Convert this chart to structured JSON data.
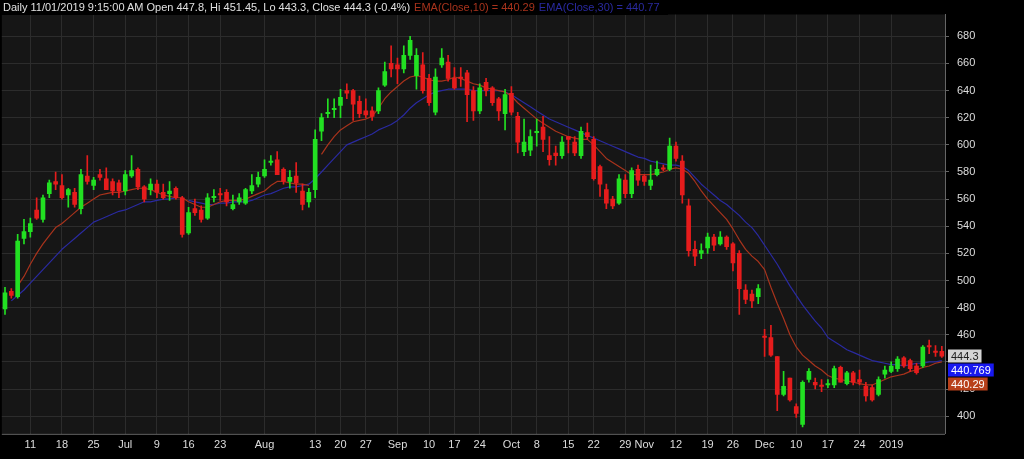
{
  "chart_data": {
    "type": "candlestick",
    "title": "Daily 11/01/2019 9:15:00 AM Open 447.8, Hi 451.45, Lo 443.3, Close 444.3 (-0.4%)",
    "categories": [
      null,
      null,
      null,
      null,
      "11",
      null,
      null,
      null,
      null,
      "18",
      null,
      null,
      null,
      null,
      "25",
      null,
      null,
      null,
      null,
      "Jul",
      null,
      null,
      null,
      null,
      "9",
      null,
      null,
      null,
      null,
      "16",
      null,
      null,
      null,
      null,
      "23",
      null,
      null,
      null,
      null,
      null,
      null,
      "Aug",
      null,
      null,
      null,
      null,
      null,
      null,
      null,
      "13",
      null,
      null,
      null,
      "20",
      null,
      null,
      null,
      "27",
      null,
      null,
      null,
      null,
      "Sep",
      null,
      null,
      null,
      null,
      "10",
      null,
      null,
      null,
      "17",
      null,
      null,
      null,
      "24",
      null,
      null,
      null,
      null,
      "Oct",
      null,
      null,
      null,
      "8",
      null,
      null,
      null,
      null,
      "15",
      null,
      null,
      null,
      "22",
      null,
      null,
      null,
      null,
      "29",
      null,
      null,
      "Nov",
      null,
      null,
      null,
      null,
      "12",
      null,
      null,
      null,
      null,
      "19",
      null,
      null,
      null,
      "26",
      null,
      null,
      null,
      null,
      "Dec",
      null,
      null,
      null,
      null,
      "10",
      null,
      null,
      null,
      null,
      "17",
      null,
      null,
      null,
      null,
      "24",
      null,
      null,
      null,
      null,
      "2019",
      null,
      null,
      null,
      null,
      null,
      null,
      null,
      null
    ],
    "ohlc": [
      [
        479,
        495,
        475,
        491
      ],
      [
        492,
        494,
        487,
        489
      ],
      [
        488,
        534,
        487,
        529
      ],
      [
        531,
        545,
        527,
        536
      ],
      [
        536,
        546,
        532,
        542
      ],
      [
        552,
        561,
        545,
        546
      ],
      [
        545,
        563,
        543,
        561
      ],
      [
        564,
        574,
        561,
        572
      ],
      [
        573,
        580,
        567,
        571
      ],
      [
        570,
        578,
        560,
        561
      ],
      [
        563,
        568,
        554,
        567
      ],
      [
        565,
        568,
        554,
        556
      ],
      [
        553,
        582,
        549,
        578
      ],
      [
        577,
        592,
        571,
        573
      ],
      [
        570,
        576,
        567,
        574
      ],
      [
        578,
        582,
        574,
        576
      ],
      [
        575,
        583,
        567,
        567
      ],
      [
        573,
        575,
        563,
        566
      ],
      [
        572,
        574,
        561,
        566
      ],
      [
        566,
        581,
        563,
        578
      ],
      [
        577,
        592,
        576,
        581
      ],
      [
        582,
        583,
        567,
        569
      ],
      [
        569,
        570,
        558,
        560
      ],
      [
        567,
        575,
        563,
        571
      ],
      [
        571,
        574,
        561,
        565
      ],
      [
        565,
        571,
        560,
        561
      ],
      [
        564,
        573,
        559,
        566
      ],
      [
        568,
        569,
        560,
        561
      ],
      [
        561,
        562,
        532,
        534
      ],
      [
        535,
        554,
        534,
        550
      ],
      [
        553,
        560,
        548,
        550
      ],
      [
        552,
        555,
        543,
        545
      ],
      [
        546,
        564,
        545,
        561
      ],
      [
        561,
        567,
        558,
        562
      ],
      [
        564,
        568,
        559,
        563
      ],
      [
        565,
        567,
        555,
        558
      ],
      [
        553,
        563,
        552,
        556
      ],
      [
        558,
        564,
        556,
        561
      ],
      [
        557,
        568,
        556,
        567
      ],
      [
        566,
        578,
        564,
        570
      ],
      [
        571,
        580,
        569,
        576
      ],
      [
        577,
        589,
        576,
        582
      ],
      [
        587,
        592,
        585,
        588
      ],
      [
        589,
        595,
        578,
        578
      ],
      [
        582,
        583,
        571,
        573
      ],
      [
        573,
        581,
        568,
        576
      ],
      [
        577,
        587,
        565,
        572
      ],
      [
        566,
        571,
        552,
        556
      ],
      [
        558,
        568,
        554,
        565
      ],
      [
        567,
        611,
        561,
        604
      ],
      [
        610,
        623,
        603,
        620
      ],
      [
        623,
        634,
        620,
        624
      ],
      [
        626,
        634,
        620,
        627
      ],
      [
        629,
        641,
        620,
        635
      ],
      [
        640,
        645,
        634,
        638
      ],
      [
        640,
        641,
        618,
        630
      ],
      [
        632,
        636,
        620,
        623
      ],
      [
        625,
        634,
        620,
        622
      ],
      [
        625,
        628,
        618,
        621
      ],
      [
        625,
        642,
        623,
        640
      ],
      [
        644,
        661,
        643,
        654
      ],
      [
        660,
        673,
        650,
        656
      ],
      [
        659,
        664,
        645,
        656
      ],
      [
        656,
        673,
        653,
        666
      ],
      [
        666,
        680,
        663,
        677
      ],
      [
        651,
        671,
        641,
        666
      ],
      [
        659,
        668,
        638,
        640
      ],
      [
        649,
        652,
        629,
        631
      ],
      [
        624,
        656,
        622,
        650
      ],
      [
        659,
        671,
        657,
        664
      ],
      [
        661,
        666,
        647,
        649
      ],
      [
        649,
        657,
        641,
        642
      ],
      [
        650,
        657,
        643,
        649
      ],
      [
        653,
        655,
        617,
        637
      ],
      [
        640,
        643,
        618,
        625
      ],
      [
        625,
        645,
        623,
        642
      ],
      [
        646,
        649,
        636,
        640
      ],
      [
        642,
        643,
        629,
        631
      ],
      [
        634,
        635,
        618,
        625
      ],
      [
        623,
        641,
        611,
        637
      ],
      [
        638,
        643,
        622,
        624
      ],
      [
        621,
        624,
        594,
        602
      ],
      [
        595,
        619,
        592,
        602
      ],
      [
        596,
        611,
        592,
        606
      ],
      [
        609,
        619,
        599,
        610
      ],
      [
        613,
        621,
        595,
        604
      ],
      [
        592,
        606,
        585,
        589
      ],
      [
        594,
        599,
        585,
        592
      ],
      [
        592,
        606,
        590,
        602
      ],
      [
        606,
        606,
        594,
        604
      ],
      [
        602,
        606,
        592,
        594
      ],
      [
        592,
        613,
        590,
        610
      ],
      [
        609,
        616,
        604,
        606
      ],
      [
        604,
        606,
        574,
        575
      ],
      [
        584,
        585,
        562,
        571
      ],
      [
        567,
        571,
        553,
        557
      ],
      [
        560,
        562,
        553,
        555
      ],
      [
        557,
        578,
        556,
        575
      ],
      [
        574,
        578,
        561,
        564
      ],
      [
        564,
        583,
        561,
        581
      ],
      [
        582,
        585,
        570,
        574
      ],
      [
        577,
        578,
        570,
        573
      ],
      [
        570,
        585,
        567,
        574
      ],
      [
        578,
        588,
        577,
        582
      ],
      [
        583,
        585,
        581,
        582
      ],
      [
        582,
        605,
        581,
        599
      ],
      [
        599,
        602,
        588,
        590
      ],
      [
        588,
        592,
        557,
        563
      ],
      [
        555,
        560,
        518,
        522
      ],
      [
        523,
        529,
        511,
        518
      ],
      [
        520,
        527,
        516,
        522
      ],
      [
        524,
        535,
        520,
        532
      ],
      [
        532,
        534,
        522,
        526
      ],
      [
        527,
        536,
        526,
        532
      ],
      [
        532,
        533,
        523,
        525
      ],
      [
        527,
        528,
        507,
        513
      ],
      [
        520,
        522,
        475,
        494
      ],
      [
        493,
        497,
        483,
        486
      ],
      [
        490,
        493,
        480,
        485
      ],
      [
        488,
        497,
        483,
        494
      ],
      [
        459,
        464,
        444,
        458
      ],
      [
        458,
        467,
        444,
        445
      ],
      [
        444,
        444,
        404,
        416
      ],
      [
        416,
        433,
        415,
        422
      ],
      [
        428,
        428,
        411,
        412
      ],
      [
        407,
        409,
        399,
        402
      ],
      [
        394,
        426,
        392,
        425
      ],
      [
        427,
        435,
        425,
        433
      ],
      [
        425,
        428,
        420,
        423
      ],
      [
        423,
        427,
        418,
        422
      ],
      [
        423,
        427,
        421,
        424
      ],
      [
        423,
        437,
        421,
        435
      ],
      [
        436,
        437,
        425,
        425
      ],
      [
        424,
        433,
        423,
        432
      ],
      [
        432,
        433,
        423,
        425
      ],
      [
        427,
        434,
        423,
        425
      ],
      [
        422,
        425,
        411,
        415
      ],
      [
        421,
        423,
        411,
        412
      ],
      [
        416,
        429,
        415,
        427
      ],
      [
        431,
        437,
        428,
        434
      ],
      [
        433,
        440,
        432,
        437
      ],
      [
        435,
        444,
        433,
        442
      ],
      [
        443,
        444,
        436,
        437
      ],
      [
        441,
        442,
        433,
        435
      ],
      [
        437,
        439,
        431,
        432
      ],
      [
        437,
        452,
        436,
        451
      ],
      [
        452,
        456,
        446,
        451
      ],
      [
        448,
        452,
        444,
        447
      ],
      [
        447.8,
        451.45,
        443.3,
        444.3
      ]
    ],
    "colors": [
      "#22e022",
      "#e61c1c",
      "#22e022",
      "#22e022",
      "#22e022",
      "#e61c1c",
      "#22e022",
      "#22e022",
      "#e61c1c",
      "#e61c1c",
      "#22e022",
      "#e61c1c",
      "#22e022",
      "#e61c1c",
      "#22e022",
      "#e61c1c",
      "#e61c1c",
      "#e61c1c",
      "#e61c1c",
      "#22e022",
      "#22e022",
      "#e61c1c",
      "#e61c1c",
      "#22e022",
      "#e61c1c",
      "#e61c1c",
      "#22e022",
      "#e61c1c",
      "#e61c1c",
      "#22e022",
      "#e61c1c",
      "#e61c1c",
      "#22e022",
      "#22e022",
      "#e61c1c",
      "#e61c1c",
      "#22e022",
      "#22e022",
      "#22e022",
      "#22e022",
      "#22e022",
      "#22e022",
      "#22e022",
      "#e61c1c",
      "#e61c1c",
      "#22e022",
      "#e61c1c",
      "#e61c1c",
      "#22e022",
      "#22e022",
      "#22e022",
      "#22e022",
      "#22e022",
      "#22e022",
      "#e61c1c",
      "#e61c1c",
      "#e61c1c",
      "#e61c1c",
      "#e61c1c",
      "#22e022",
      "#22e022",
      "#e61c1c",
      "#e61c1c",
      "#22e022",
      "#22e022",
      "#22e022",
      "#e61c1c",
      "#e61c1c",
      "#22e022",
      "#22e022",
      "#e61c1c",
      "#e61c1c",
      "#e61c1c",
      "#e61c1c",
      "#e61c1c",
      "#22e022",
      "#e61c1c",
      "#e61c1c",
      "#e61c1c",
      "#22e022",
      "#e61c1c",
      "#e61c1c",
      "#22e022",
      "#22e022",
      "#22e022",
      "#e61c1c",
      "#e61c1c",
      "#e61c1c",
      "#22e022",
      "#e61c1c",
      "#e61c1c",
      "#22e022",
      "#e61c1c",
      "#e61c1c",
      "#e61c1c",
      "#e61c1c",
      "#e61c1c",
      "#22e022",
      "#e61c1c",
      "#22e022",
      "#e61c1c",
      "#e61c1c",
      "#22e022",
      "#22e022",
      "#e61c1c",
      "#22e022",
      "#e61c1c",
      "#e61c1c",
      "#e61c1c",
      "#e61c1c",
      "#22e022",
      "#22e022",
      "#e61c1c",
      "#22e022",
      "#e61c1c",
      "#e61c1c",
      "#e61c1c",
      "#e61c1c",
      "#e61c1c",
      "#22e022",
      "#e61c1c",
      "#e61c1c",
      "#e61c1c",
      "#22e022",
      "#e61c1c",
      "#e61c1c",
      "#22e022",
      "#22e022",
      "#e61c1c",
      "#e61c1c",
      "#22e022",
      "#22e022",
      "#e61c1c",
      "#22e022",
      "#e61c1c",
      "#e61c1c",
      "#e61c1c",
      "#e61c1c",
      "#22e022",
      "#22e022",
      "#22e022",
      "#22e022",
      "#e61c1c",
      "#e61c1c",
      "#e61c1c",
      "#22e022",
      "#e61c1c",
      "#e61c1c",
      "#e61c1c"
    ],
    "series": [
      {
        "type": "line",
        "name": "EMA(Close,10) = 440.29",
        "color": "#a8331c",
        "values": [
          null,
          null,
          496,
          503,
          512,
          520,
          527,
          533,
          539,
          542,
          546,
          550,
          554,
          557,
          560,
          563,
          564,
          565,
          565,
          566,
          567,
          568,
          568,
          567,
          565,
          563,
          562,
          561,
          561,
          558,
          556,
          554,
          554,
          556,
          558,
          559,
          559,
          559,
          560,
          562,
          564,
          566,
          570,
          573,
          573,
          572,
          571,
          571,
          570,
          null,
          593,
          600,
          606,
          611,
          614,
          617,
          618,
          619,
          621,
          627,
          634,
          639,
          643,
          647,
          650,
          651,
          650,
          648,
          647,
          647,
          648,
          650,
          649,
          647,
          645,
          644,
          642,
          641,
          640,
          639,
          636,
          631,
          627,
          623,
          619,
          616,
          613,
          610,
          608,
          606,
          605,
          604,
          604,
          600,
          595,
          590,
          587,
          584,
          581,
          578,
          578,
          578,
          578,
          579,
          580,
          582,
          583,
          582,
          579,
          573,
          566,
          560,
          555,
          550,
          545,
          538,
          530,
          523,
          518,
          514,
          508,
          495,
          483,
          472,
          460,
          451,
          445,
          441,
          437,
          434,
          430,
          428,
          427,
          426,
          425,
          424,
          423,
          423,
          425,
          427,
          429,
          430,
          431,
          433,
          434,
          436,
          437,
          439,
          440
        ]
      },
      {
        "type": "line",
        "name": "EMA(Close,30) = 440.77",
        "color": "#2a2aa0",
        "values": [
          null,
          485,
          489,
          493,
          498,
          503,
          508,
          513,
          518,
          523,
          527,
          531,
          535,
          539,
          543,
          545,
          547,
          549,
          551,
          552,
          554,
          556,
          558,
          558,
          559,
          560,
          560,
          561,
          null,
          559,
          558,
          557,
          556,
          556,
          557,
          557,
          558,
          558,
          558,
          559,
          561,
          563,
          564,
          566,
          568,
          569,
          569,
          570,
          571,
          575,
          580,
          585,
          590,
          595,
          600,
          602,
          604,
          606,
          608,
          611,
          613,
          615,
          618,
          622,
          627,
          631,
          634,
          637,
          639,
          640,
          641,
          641,
          641,
          641,
          640,
          640,
          640,
          640,
          640,
          639,
          637,
          634,
          631,
          628,
          625,
          622,
          619,
          617,
          615,
          613,
          611,
          609,
          607,
          605,
          603,
          601,
          599,
          597,
          595,
          593,
          591,
          590,
          588,
          587,
          586,
          585,
          585,
          584,
          581,
          576,
          571,
          567,
          563,
          559,
          556,
          552,
          548,
          543,
          539,
          533,
          526,
          519,
          512,
          504,
          496,
          489,
          482,
          476,
          470,
          465,
          458,
          455,
          452,
          449,
          447,
          445,
          443,
          441,
          440,
          439,
          438,
          438,
          437,
          438,
          439,
          439,
          440,
          440,
          441
        ]
      }
    ],
    "ylim": [
      387,
      696
    ],
    "yticks": [
      400,
      420,
      {
        "value": 440,
        "label": null
      },
      460,
      480,
      500,
      520,
      540,
      560,
      580,
      600,
      620,
      640,
      660,
      680
    ],
    "grid": true,
    "legend": "top",
    "annotations": [
      {
        "text": "444.3",
        "y": 444.3
      },
      "440.769",
      "440.29"
    ]
  }
}
